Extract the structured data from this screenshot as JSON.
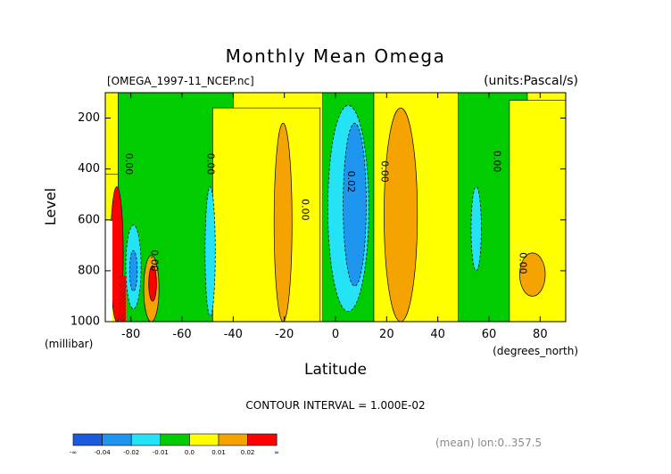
{
  "chart_data": {
    "type": "heatmap",
    "title": "Monthly Mean Omega",
    "file_label": "[OMEGA_1997-11_NCEP.nc]",
    "units_label": "(units:Pascal/s)",
    "xlabel": "Latitude",
    "xunits": "(degrees_north)",
    "ylabel": "Level",
    "yunits": "(millibar)",
    "xlim": [
      -90,
      90
    ],
    "ylim": [
      1000,
      100
    ],
    "xticks": [
      -80,
      -60,
      -40,
      -20,
      0,
      20,
      40,
      60,
      80
    ],
    "xtick_labels": [
      "-80",
      "-60",
      "-40",
      "-20",
      "0",
      "20",
      "40",
      "60",
      "80"
    ],
    "yticks": [
      200,
      400,
      600,
      800,
      1000
    ],
    "ytick_labels": [
      "200",
      "400",
      "600",
      "800",
      "1000"
    ],
    "contour_interval_text": "CONTOUR INTERVAL = 1.000E-02",
    "footnote": "(mean) lon:0..357.5",
    "contour_labels": [
      {
        "text": "0.00",
        "lat": -81,
        "lev": 380
      },
      {
        "text": "0.00",
        "lat": -49,
        "lev": 380
      },
      {
        "text": "0.00",
        "lat": -71,
        "lev": 760
      },
      {
        "text": "0.00",
        "lat": -12,
        "lev": 560
      },
      {
        "text": "0.02",
        "lat": 6,
        "lev": 450
      },
      {
        "text": "0.00",
        "lat": 19,
        "lev": 410
      },
      {
        "text": "0.00",
        "lat": 63,
        "lev": 370
      },
      {
        "text": "0.00",
        "lat": 73,
        "lev": 770
      }
    ],
    "colorbar": {
      "colors": [
        "#1a5adf",
        "#1e96f0",
        "#24e3f4",
        "#00cc00",
        "#ffff00",
        "#f5a300",
        "#ff0000"
      ],
      "labels": [
        "-∞",
        "-0.04",
        "-0.02",
        "-0.01",
        "0.0",
        "0.01",
        "0.02",
        "∞"
      ]
    },
    "regions": [
      {
        "band": "yellow",
        "lat": -90,
        "lev_top": 420,
        "lev_bot": 1000,
        "width": 5
      },
      {
        "band": "green",
        "lat": -85,
        "lev_top": 100,
        "lev_bot": 1000,
        "width": 45
      },
      {
        "band": "yellow",
        "lat": -48,
        "lev_top": 160,
        "lev_bot": 1000,
        "width": 42
      },
      {
        "band": "green",
        "lat": -5,
        "lev_top": 100,
        "lev_bot": 1000,
        "width": 20
      },
      {
        "band": "yellow",
        "lat": 15,
        "lev_top": 100,
        "lev_bot": 1000,
        "width": 34
      },
      {
        "band": "green",
        "lat": 48,
        "lev_top": 100,
        "lev_bot": 1000,
        "width": 27
      },
      {
        "band": "yellow",
        "lat": 68,
        "lev_top": 130,
        "lev_bot": 1000,
        "width": 22
      }
    ],
    "features": [
      {
        "band": "red",
        "lat_min": -88,
        "lat_max": -83,
        "lev_top": 470,
        "lev_bot": 1000
      },
      {
        "band": "cyan",
        "lat_min": -82,
        "lat_max": -76,
        "lev_top": 620,
        "lev_bot": 950
      },
      {
        "band": "blue",
        "lat_min": -80.5,
        "lat_max": -77.5,
        "lev_top": 720,
        "lev_bot": 880
      },
      {
        "band": "orange",
        "lat_min": -75,
        "lat_max": -69,
        "lev_top": 740,
        "lev_bot": 1000
      },
      {
        "band": "red",
        "lat_min": -73,
        "lat_max": -70,
        "lev_top": 780,
        "lev_bot": 920
      },
      {
        "band": "cyan",
        "lat_min": -51,
        "lat_max": -47,
        "lev_top": 470,
        "lev_bot": 980
      },
      {
        "band": "orange",
        "lat_min": -24,
        "lat_max": -17,
        "lev_top": 220,
        "lev_bot": 1000
      },
      {
        "band": "cyan",
        "lat_min": -3,
        "lat_max": 13,
        "lev_top": 150,
        "lev_bot": 960
      },
      {
        "band": "blue",
        "lat_min": 3,
        "lat_max": 12,
        "lev_top": 220,
        "lev_bot": 860
      },
      {
        "band": "orange",
        "lat_min": 19,
        "lat_max": 32,
        "lev_top": 160,
        "lev_bot": 1000
      },
      {
        "band": "cyan",
        "lat_min": 53,
        "lat_max": 57,
        "lev_top": 470,
        "lev_bot": 800
      },
      {
        "band": "orange",
        "lat_min": 72,
        "lat_max": 82,
        "lev_top": 730,
        "lev_bot": 900
      }
    ]
  }
}
